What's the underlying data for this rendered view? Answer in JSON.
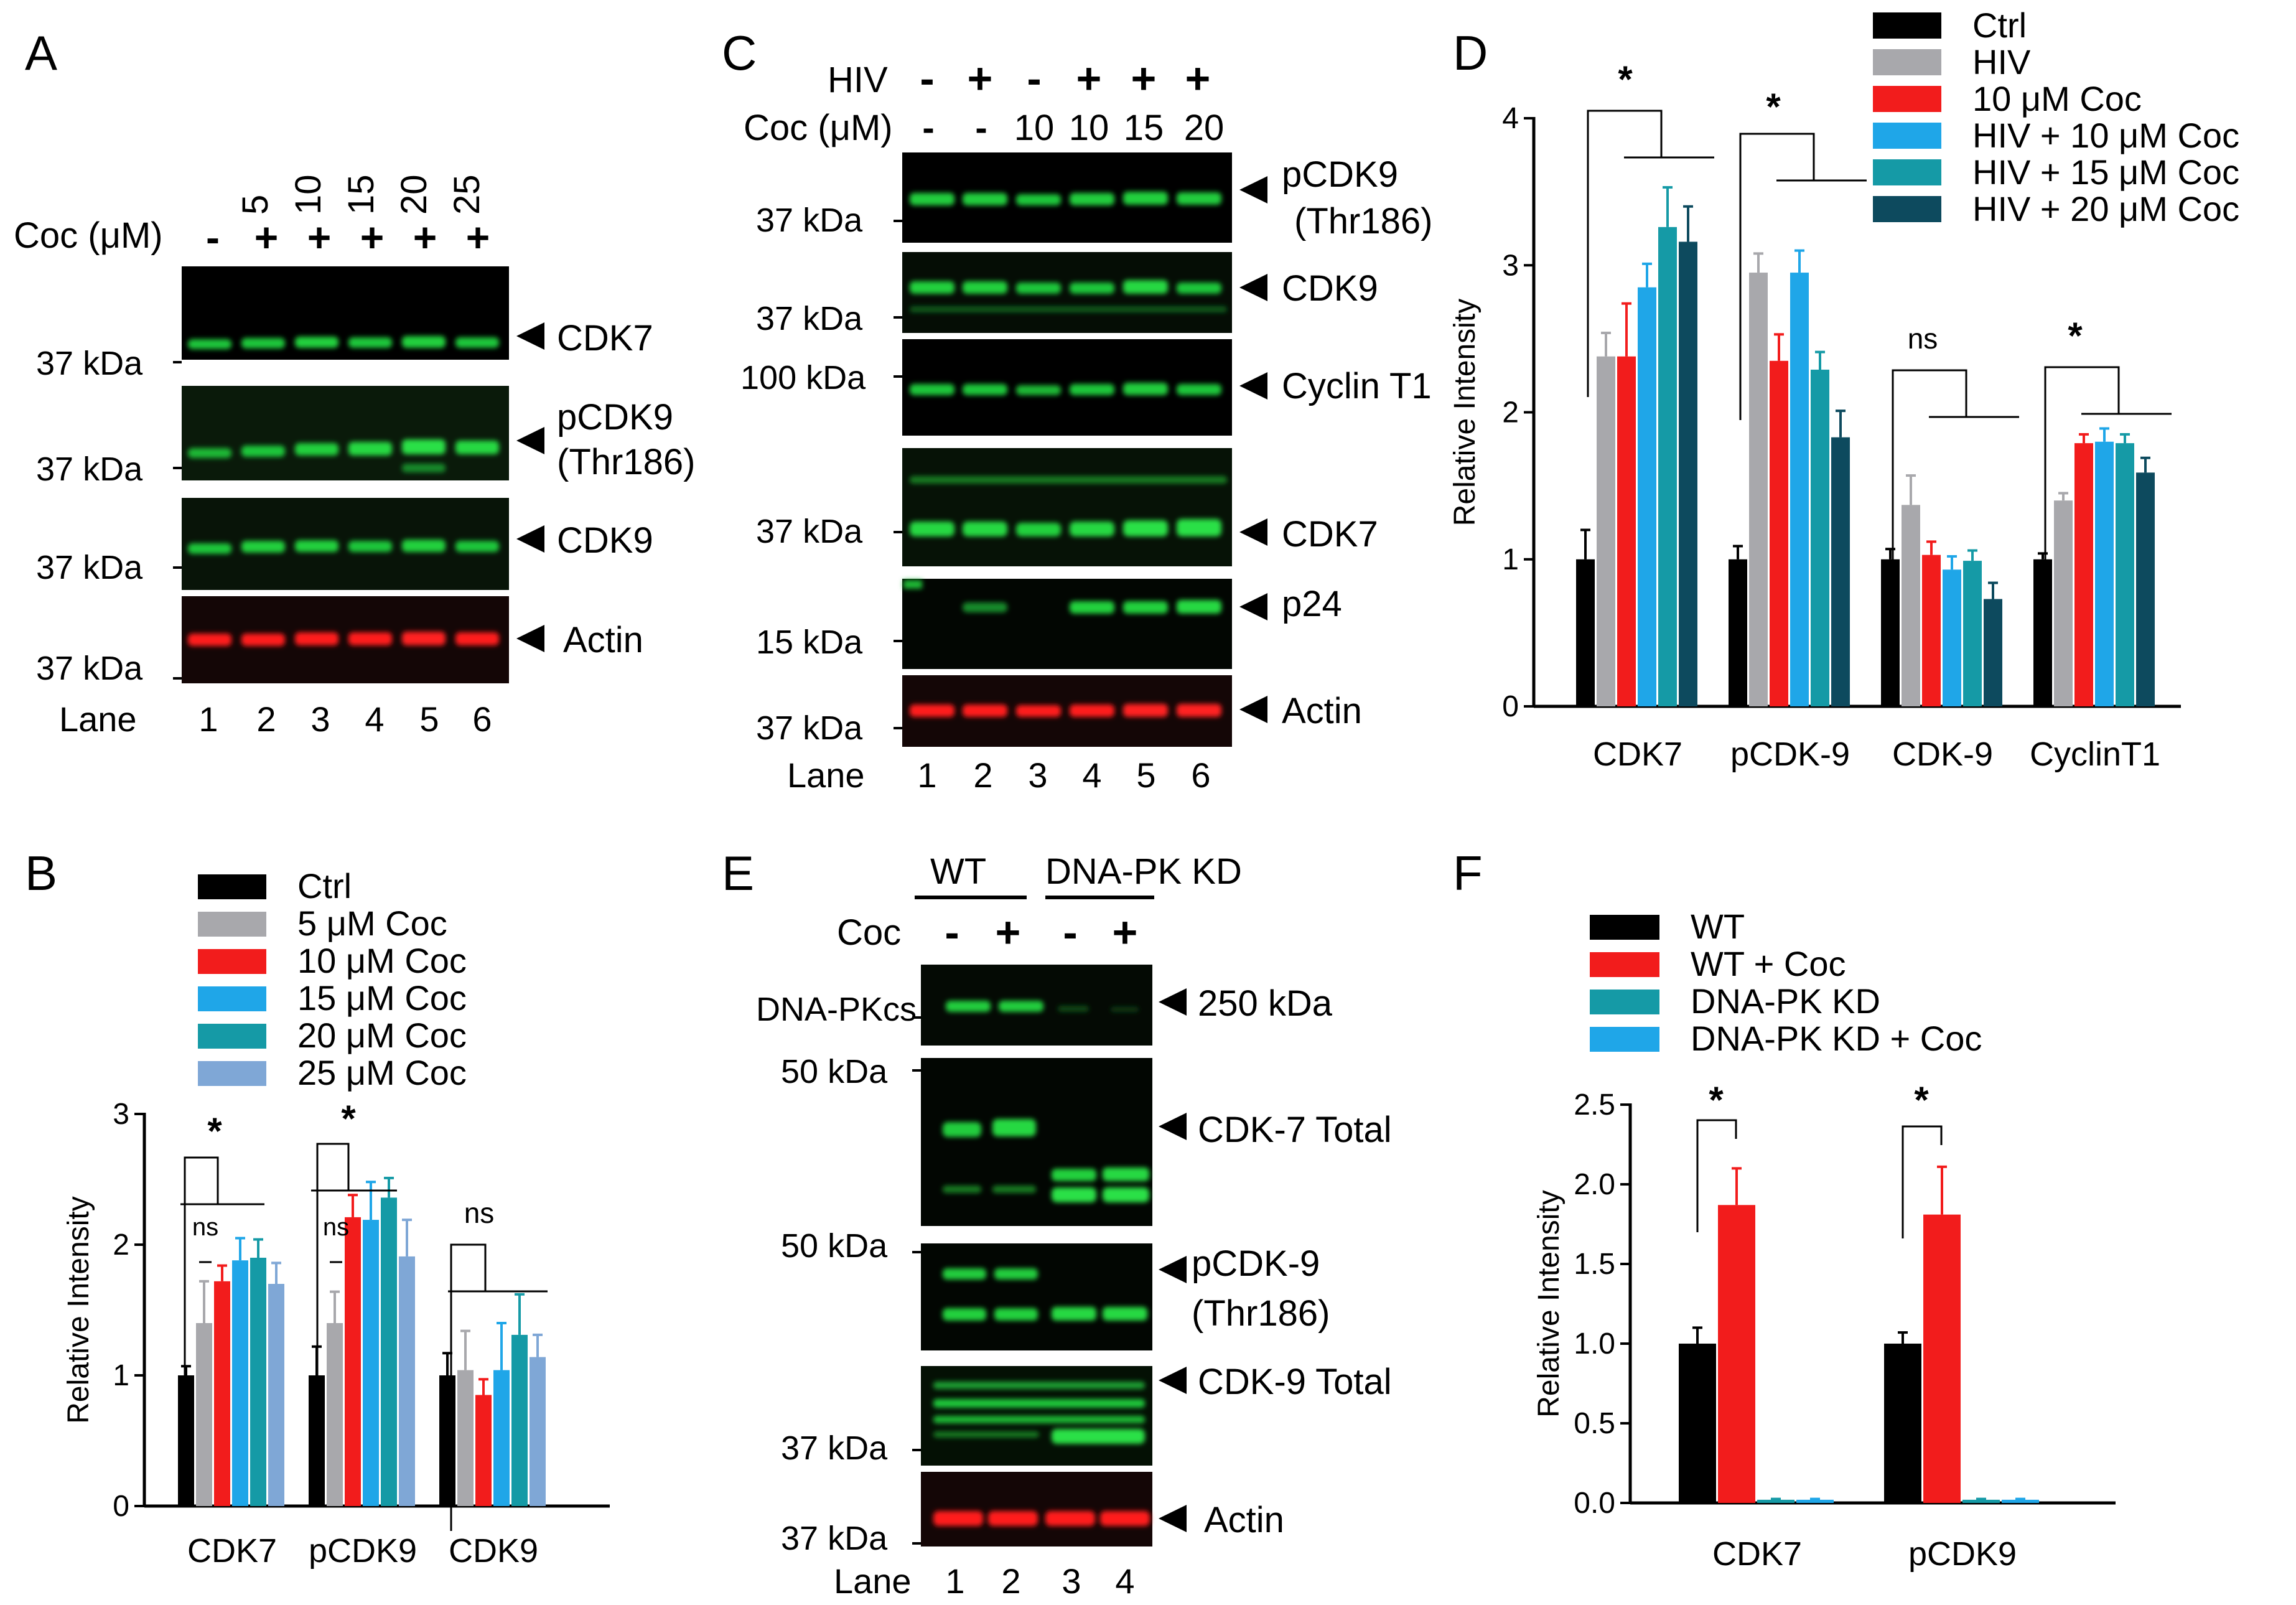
{
  "panels": {
    "A": {
      "letter": "A",
      "coc_label": "Coc (μM)",
      "coc_doses": [
        "5",
        "10",
        "15",
        "20",
        "25"
      ],
      "coc_signs": [
        "-",
        "+",
        "+",
        "+",
        "+",
        "+"
      ],
      "blots": [
        {
          "label": "CDK7",
          "kda": "37 kDa",
          "color": "green"
        },
        {
          "label": "pCDK9\n(Thr186)",
          "kda": "37 kDa",
          "color": "green"
        },
        {
          "label": "CDK9",
          "kda": "37 kDa",
          "color": "green"
        },
        {
          "label": "Actin",
          "kda": "37 kDa",
          "color": "red"
        }
      ],
      "lane_label": "Lane",
      "lanes": [
        "1",
        "2",
        "3",
        "4",
        "5",
        "6"
      ]
    },
    "B": {
      "letter": "B"
    },
    "C": {
      "letter": "C",
      "hiv_label": "HIV",
      "hiv_signs": [
        "-",
        "+",
        "-",
        "+",
        "+",
        "+"
      ],
      "coc_label": "Coc (μM)",
      "coc_values": [
        "-",
        "-",
        "10",
        "10",
        "15",
        "20"
      ],
      "blots": [
        {
          "label": "pCDK9\n(Thr186)",
          "kda": "37 kDa",
          "color": "green"
        },
        {
          "label": "CDK9",
          "kda": "37 kDa",
          "color": "green"
        },
        {
          "label": "Cyclin T1",
          "kda": "100 kDa",
          "color": "green"
        },
        {
          "label": "CDK7",
          "kda": "37 kDa",
          "color": "green"
        },
        {
          "label": "p24",
          "kda": "15 kDa",
          "color": "green"
        },
        {
          "label": "Actin",
          "kda": "37 kDa",
          "color": "red"
        }
      ],
      "lane_label": "Lane",
      "lanes": [
        "1",
        "2",
        "3",
        "4",
        "5",
        "6"
      ]
    },
    "D": {
      "letter": "D"
    },
    "E": {
      "letter": "E",
      "groups": [
        "WT",
        "DNA-PK KD"
      ],
      "coc_label": "Coc",
      "coc_signs": [
        "-",
        "+",
        "-",
        "+"
      ],
      "blots": [
        {
          "label": "DNA-PKcs",
          "kda": "250 kDa",
          "color": "green"
        },
        {
          "label": "CDK-7 Total",
          "kda": "50 kDa",
          "color": "green"
        },
        {
          "label": "pCDK-9\n(Thr186)",
          "kda": "50 kDa",
          "color": "green"
        },
        {
          "label": "CDK-9 Total",
          "kda": "37 kDa",
          "color": "green"
        },
        {
          "label": "Actin",
          "kda": "37 kDa",
          "color": "red"
        }
      ],
      "lane_label": "Lane",
      "lanes": [
        "1",
        "2",
        "3",
        "4"
      ]
    },
    "F": {
      "letter": "F"
    }
  },
  "chart_data": [
    {
      "id": "B",
      "type": "bar",
      "ylabel": "Relative Intensity",
      "ylim": [
        0,
        3
      ],
      "yticks": [
        "0",
        "1",
        "2",
        "3"
      ],
      "categories": [
        "CDK7",
        "pCDK9",
        "CDK9"
      ],
      "legend_position": "top",
      "series": [
        {
          "name": "Ctrl",
          "color": "#000000",
          "values": [
            1.0,
            1.0,
            1.0
          ],
          "errors": [
            0.07,
            0.22,
            0.17
          ]
        },
        {
          "name": "5 μM Coc",
          "color": "#a8a8ac",
          "values": [
            1.4,
            1.4,
            1.04
          ],
          "errors": [
            0.32,
            0.24,
            0.3
          ]
        },
        {
          "name": "10 μM Coc",
          "color": "#f21c1c",
          "values": [
            1.72,
            2.21,
            0.85
          ],
          "errors": [
            0.12,
            0.17,
            0.12
          ]
        },
        {
          "name": "15 μM Coc",
          "color": "#1fa6e8",
          "values": [
            1.88,
            2.19,
            1.04
          ],
          "errors": [
            0.17,
            0.29,
            0.36
          ]
        },
        {
          "name": "20 μM Coc",
          "color": "#159aa6",
          "values": [
            1.9,
            2.36,
            1.31
          ],
          "errors": [
            0.14,
            0.15,
            0.31
          ]
        },
        {
          "name": "25 μM Coc",
          "color": "#7fa7d6",
          "values": [
            1.7,
            1.91,
            1.14
          ],
          "errors": [
            0.16,
            0.28,
            0.17
          ]
        }
      ],
      "annotations": [
        {
          "text": "*",
          "category": "CDK7"
        },
        {
          "text": "ns",
          "category": "CDK7"
        },
        {
          "text": "*",
          "category": "pCDK9"
        },
        {
          "text": "ns",
          "category": "pCDK9"
        },
        {
          "text": "ns",
          "category": "CDK9"
        }
      ]
    },
    {
      "id": "D",
      "type": "bar",
      "ylabel": "Relative Intensity",
      "ylim": [
        0,
        4
      ],
      "yticks": [
        "0",
        "1",
        "2",
        "3",
        "4"
      ],
      "categories": [
        "CDK7",
        "pCDK-9",
        "CDK-9",
        "CyclinT1"
      ],
      "legend_position": "top-right",
      "series": [
        {
          "name": "Ctrl",
          "color": "#000000",
          "values": [
            1.0,
            1.0,
            1.0,
            1.0
          ],
          "errors": [
            0.2,
            0.09,
            0.07,
            0.04
          ]
        },
        {
          "name": "HIV",
          "color": "#a8a8ac",
          "values": [
            2.38,
            2.95,
            1.37,
            1.4
          ],
          "errors": [
            0.16,
            0.13,
            0.2,
            0.05
          ]
        },
        {
          "name": "10 μM Coc",
          "color": "#f21c1c",
          "values": [
            2.38,
            2.35,
            1.03,
            1.79
          ],
          "errors": [
            0.36,
            0.18,
            0.09,
            0.06
          ]
        },
        {
          "name": "HIV + 10 μM Coc",
          "color": "#1fa6e8",
          "values": [
            2.85,
            2.95,
            0.93,
            1.8
          ],
          "errors": [
            0.16,
            0.15,
            0.09,
            0.09
          ]
        },
        {
          "name": "HIV + 15 μM Coc",
          "color": "#159aa6",
          "values": [
            3.26,
            2.29,
            0.99,
            1.79
          ],
          "errors": [
            0.27,
            0.12,
            0.07,
            0.06
          ]
        },
        {
          "name": "HIV + 20 μM Coc",
          "color": "#0d4a5e",
          "values": [
            3.16,
            1.83,
            0.73,
            1.59
          ],
          "errors": [
            0.24,
            0.18,
            0.11,
            0.1
          ]
        }
      ],
      "annotations": [
        {
          "text": "*",
          "category": "CDK7"
        },
        {
          "text": "*",
          "category": "pCDK-9"
        },
        {
          "text": "ns",
          "category": "CDK-9"
        },
        {
          "text": "*",
          "category": "CyclinT1"
        }
      ]
    },
    {
      "id": "F",
      "type": "bar",
      "ylabel": "Relative Intensity",
      "ylim": [
        0,
        2.5
      ],
      "yticks": [
        "0.0",
        "0.5",
        "1.0",
        "1.5",
        "2.0",
        "2.5"
      ],
      "categories": [
        "CDK7",
        "pCDK9"
      ],
      "legend_position": "top",
      "series": [
        {
          "name": "WT",
          "color": "#000000",
          "values": [
            1.0,
            1.0
          ],
          "errors": [
            0.1,
            0.07
          ]
        },
        {
          "name": "WT + Coc",
          "color": "#f21c1c",
          "values": [
            1.87,
            1.81
          ],
          "errors": [
            0.23,
            0.3
          ]
        },
        {
          "name": "DNA-PK KD",
          "color": "#159aa6",
          "values": [
            0.02,
            0.02
          ],
          "errors": [
            0.005,
            0.005
          ]
        },
        {
          "name": "DNA-PK KD + Coc",
          "color": "#1fa6e8",
          "values": [
            0.02,
            0.02
          ],
          "errors": [
            0.005,
            0.005
          ]
        }
      ],
      "annotations": [
        {
          "text": "*",
          "category": "CDK7"
        },
        {
          "text": "*",
          "category": "pCDK9"
        }
      ]
    }
  ]
}
